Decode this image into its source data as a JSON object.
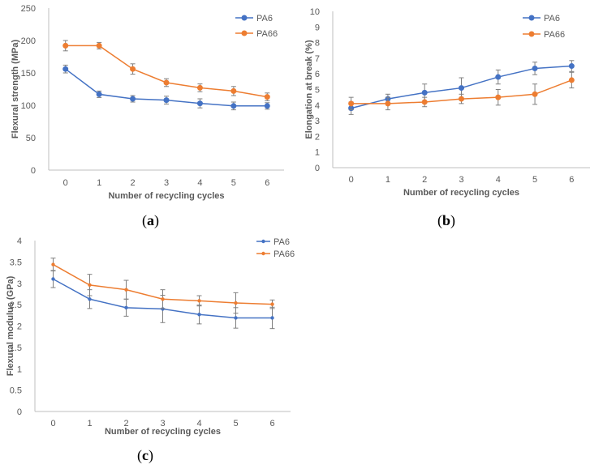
{
  "colors": {
    "PA6": "#4472C4",
    "PA66": "#ED7D31",
    "axis": "#bfbfbf",
    "errbar": "#7f7f7f"
  },
  "chart_data": [
    {
      "id": "a",
      "type": "line",
      "caption_open": "(",
      "caption_label": "a",
      "caption_close": ")",
      "xlabel": "Number of recycling cycles",
      "ylabel": "Flexural strength (MPa)",
      "categories": [
        "0",
        "1",
        "2",
        "3",
        "4",
        "5",
        "6"
      ],
      "ylim": [
        0,
        250
      ],
      "yticks": [
        0,
        50,
        100,
        150,
        200,
        250
      ],
      "series": [
        {
          "name": "PA6",
          "values": [
            156,
            117,
            110,
            108,
            103,
            99,
            99
          ],
          "errors": [
            6,
            5,
            5,
            6,
            7,
            6,
            5
          ]
        },
        {
          "name": "PA66",
          "values": [
            192,
            192,
            156,
            135,
            127,
            122,
            113
          ],
          "errors": [
            8,
            5,
            8,
            6,
            6,
            7,
            6
          ]
        }
      ],
      "legend": "top-right"
    },
    {
      "id": "b",
      "type": "line",
      "caption_open": "(",
      "caption_label": "b",
      "caption_close": ")",
      "xlabel": "Number of recycling cycles",
      "ylabel": "Elongation at break (%)",
      "categories": [
        "0",
        "1",
        "2",
        "3",
        "4",
        "5",
        "6"
      ],
      "ylim": [
        0,
        10
      ],
      "yticks": [
        0,
        1,
        2,
        3,
        4,
        5,
        6,
        7,
        8,
        9,
        10
      ],
      "series": [
        {
          "name": "PA6",
          "values": [
            3.8,
            4.4,
            4.8,
            5.1,
            5.8,
            6.35,
            6.5
          ],
          "errors": [
            0.4,
            0.3,
            0.55,
            0.65,
            0.45,
            0.4,
            0.35
          ]
        },
        {
          "name": "PA66",
          "values": [
            4.1,
            4.1,
            4.2,
            4.4,
            4.5,
            4.7,
            5.6
          ],
          "errors": [
            0.4,
            0.4,
            0.3,
            0.3,
            0.5,
            0.65,
            0.5
          ]
        }
      ],
      "legend": "top-right"
    },
    {
      "id": "c",
      "type": "line",
      "caption_open": "(",
      "caption_label": "c",
      "caption_close": ")",
      "xlabel": "Number of recycling cycles",
      "ylabel": "Flexural modulus (GPa)",
      "categories": [
        "0",
        "1",
        "2",
        "3",
        "4",
        "5",
        "6"
      ],
      "ylim": [
        0,
        4
      ],
      "yticks": [
        "0",
        "0.5",
        "1",
        "1.5",
        "2",
        "2.5",
        "3",
        "3.5",
        "4"
      ],
      "series": [
        {
          "name": "PA6",
          "values": [
            3.1,
            2.63,
            2.43,
            2.4,
            2.27,
            2.19,
            2.19
          ],
          "errors": [
            0.2,
            0.22,
            0.2,
            0.32,
            0.22,
            0.24,
            0.25
          ]
        },
        {
          "name": "PA66",
          "values": [
            3.44,
            2.96,
            2.85,
            2.63,
            2.59,
            2.54,
            2.51
          ],
          "errors": [
            0.15,
            0.25,
            0.22,
            0.22,
            0.12,
            0.24,
            0.1
          ]
        }
      ],
      "legend": "top-right"
    }
  ]
}
